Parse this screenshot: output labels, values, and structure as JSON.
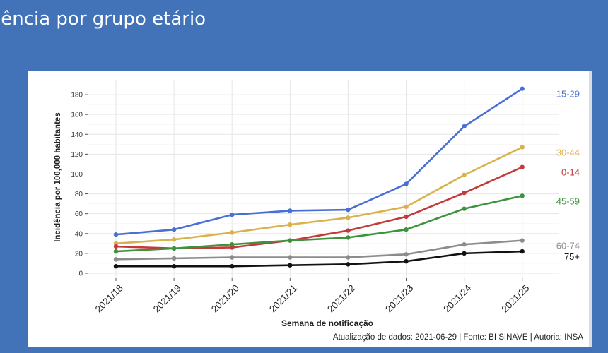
{
  "slide": {
    "title": "lência por grupo etário"
  },
  "chart_data": {
    "type": "line",
    "x": [
      "2021/18",
      "2021/19",
      "2021/20",
      "2021/21",
      "2021/22",
      "2021/23",
      "2021/24",
      "2021/25"
    ],
    "ylabel": "Incidência por 100,000 habitantes",
    "xlabel": "Semana de notificação",
    "yticks": [
      0,
      20,
      40,
      60,
      80,
      100,
      120,
      140,
      160,
      180
    ],
    "ylim": [
      -5,
      195
    ],
    "grid": true,
    "legend": "direct labels at right",
    "caption": "Atualização de dados: 2021-06-29 | Fonte: BI SINAVE | Autoria: INSA",
    "series": [
      {
        "name": "15-29",
        "color": "#4a6fd4",
        "values": [
          39,
          44,
          59,
          63,
          64,
          90,
          148,
          186
        ]
      },
      {
        "name": "30-44",
        "color": "#d9b24a",
        "values": [
          30,
          34,
          41,
          49,
          56,
          67,
          99,
          127
        ]
      },
      {
        "name": "0-14",
        "color": "#c33a3a",
        "values": [
          27,
          25,
          26,
          33,
          43,
          57,
          81,
          107
        ]
      },
      {
        "name": "45-59",
        "color": "#3d933d",
        "values": [
          22,
          25,
          29,
          33,
          36,
          44,
          65,
          78
        ]
      },
      {
        "name": "60-74",
        "color": "#8c8c8c",
        "values": [
          14,
          15,
          16,
          16,
          16,
          19,
          29,
          33
        ]
      },
      {
        "name": "75+",
        "color": "#111111",
        "values": [
          7,
          7,
          7,
          8,
          9,
          12,
          20,
          22
        ]
      }
    ]
  }
}
